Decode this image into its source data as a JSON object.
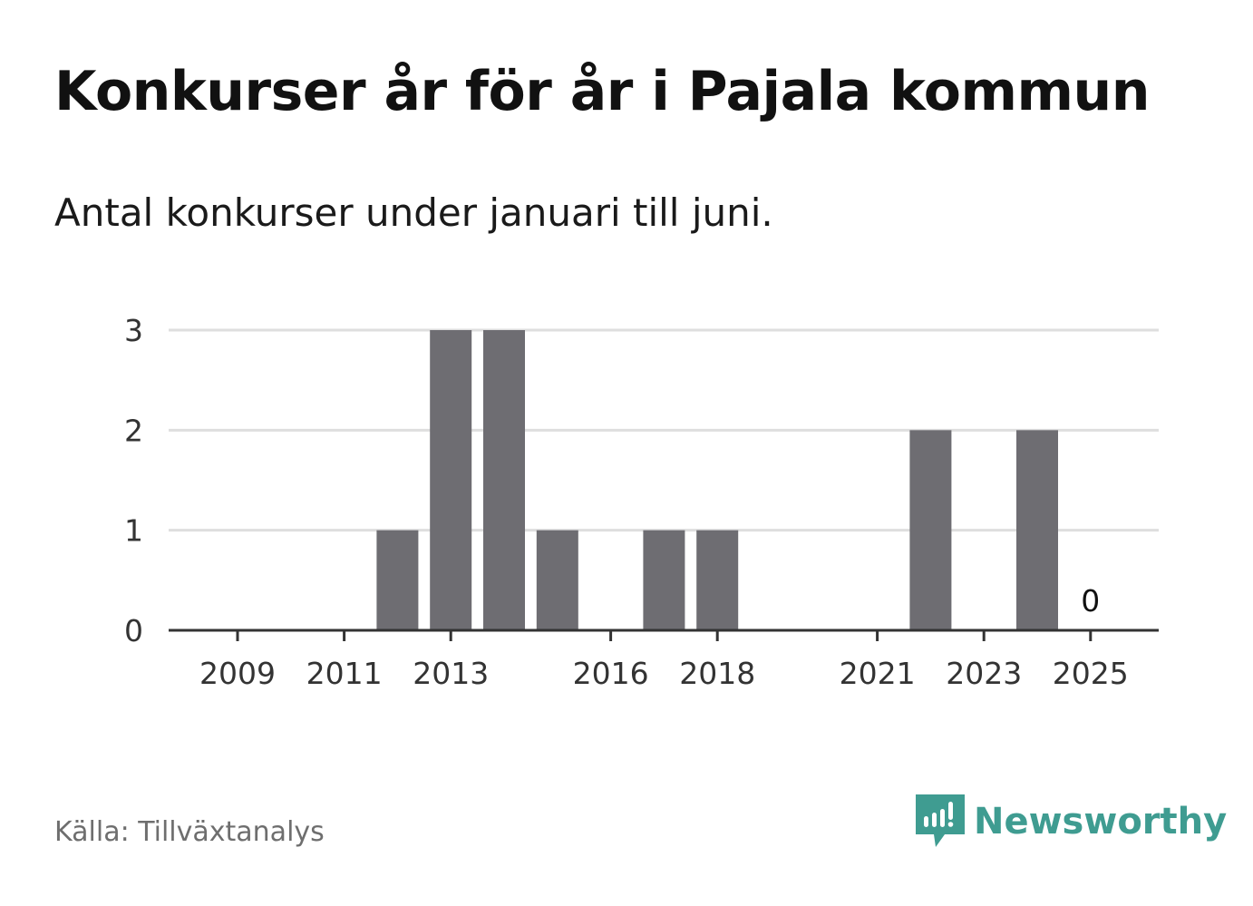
{
  "header": {
    "title": "Konkurser år för år i Pajala kommun",
    "subtitle": "Antal konkurser under januari till juni."
  },
  "footer": {
    "source": "Källa: Tillväxtanalys",
    "brand": "Newsworthy"
  },
  "colors": {
    "bar": "#6e6d72",
    "grid": "#dedede",
    "axis": "#333333",
    "brand": "#3f9c91"
  },
  "chart_data": {
    "type": "bar",
    "title": "Konkurser år för år i Pajala kommun",
    "subtitle": "Antal konkurser under januari till juni.",
    "xlabel": "",
    "ylabel": "",
    "categories": [
      "2009",
      "2010",
      "2011",
      "2012",
      "2013",
      "2014",
      "2015",
      "2016",
      "2017",
      "2018",
      "2019",
      "2020",
      "2021",
      "2022",
      "2023",
      "2024",
      "2025"
    ],
    "values": [
      0,
      0,
      0,
      1,
      3,
      3,
      1,
      0,
      1,
      1,
      0,
      0,
      0,
      2,
      0,
      2,
      0
    ],
    "x_tick_labels": [
      "2009",
      "2011",
      "2013",
      "2016",
      "2018",
      "2021",
      "2023",
      "2025"
    ],
    "y_ticks": [
      0,
      1,
      2,
      3
    ],
    "ylim": [
      0,
      3
    ],
    "grid": true,
    "annotations": [
      {
        "category": "2025",
        "text": "0"
      }
    ]
  }
}
